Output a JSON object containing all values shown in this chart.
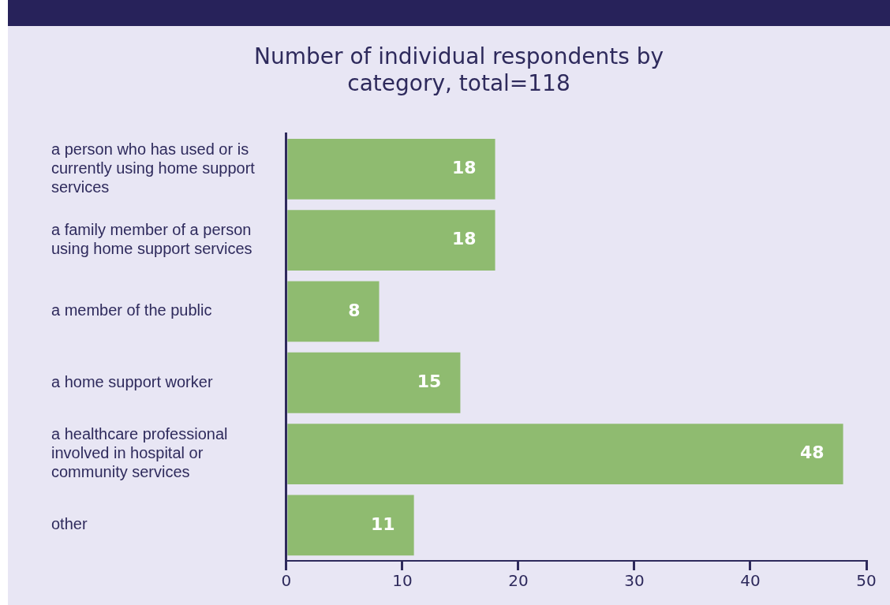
{
  "chart_data": {
    "type": "bar",
    "orientation": "horizontal",
    "title": "Number of individual respondents by category, total=118",
    "categories": [
      "a person who has used or is currently using home support services",
      "a family member of a person using home support services",
      "a member of the public",
      "a home support worker",
      "a healthcare professional involved in hospital or community services",
      "other"
    ],
    "values": [
      18,
      18,
      8,
      15,
      48,
      11
    ],
    "color": "#8fbb70",
    "xlim": [
      0,
      50
    ],
    "xticks": [
      0,
      10,
      20,
      30,
      40,
      50
    ],
    "grid": false,
    "data_labels": true
  }
}
